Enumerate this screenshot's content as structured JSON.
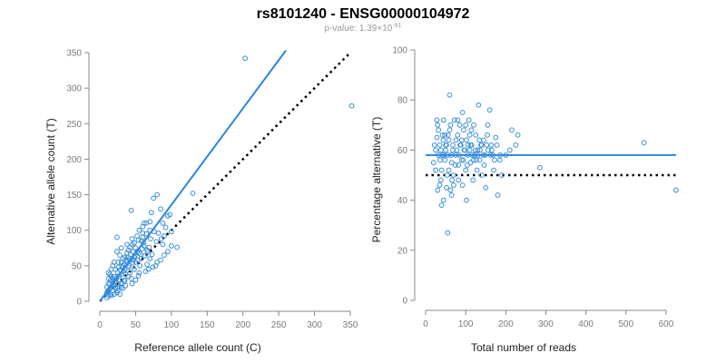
{
  "colors": {
    "points": "#3a8fd6",
    "fit": "#2a86e0",
    "reference": "#000000",
    "axes": "#888888"
  },
  "figure": {
    "title": "rs8101240 - ENSG00000104972",
    "subtitle": {
      "prefix": "p-value: 1.39",
      "times": "×",
      "base": "10",
      "exponent": "-91"
    }
  },
  "chart_data": [
    {
      "type": "scatter",
      "title": "",
      "xlabel": "Reference allele count (C)",
      "ylabel": "Alternative allele count (T)",
      "xlim": [
        0,
        350
      ],
      "ylim": [
        0,
        350
      ],
      "xticks": [
        0,
        50,
        100,
        150,
        200,
        250,
        300,
        350
      ],
      "yticks": [
        0,
        50,
        100,
        150,
        200,
        250,
        300,
        350
      ],
      "grid": false,
      "fit_line": {
        "x": [
          0,
          260
        ],
        "y": [
          0,
          353
        ],
        "style": "solid"
      },
      "reference_line": {
        "x": [
          0,
          350
        ],
        "y": [
          0,
          350
        ],
        "style": "dotted"
      },
      "points": [
        [
          10,
          5
        ],
        [
          12,
          8
        ],
        [
          15,
          10
        ],
        [
          10,
          20
        ],
        [
          14,
          18
        ],
        [
          18,
          15
        ],
        [
          20,
          22
        ],
        [
          12,
          25
        ],
        [
          22,
          28
        ],
        [
          25,
          20
        ],
        [
          28,
          30
        ],
        [
          30,
          25
        ],
        [
          15,
          30
        ],
        [
          20,
          35
        ],
        [
          25,
          40
        ],
        [
          30,
          38
        ],
        [
          35,
          45
        ],
        [
          32,
          50
        ],
        [
          38,
          55
        ],
        [
          40,
          48
        ],
        [
          42,
          60
        ],
        [
          45,
          58
        ],
        [
          48,
          62
        ],
        [
          50,
          55
        ],
        [
          52,
          70
        ],
        [
          35,
          62
        ],
        [
          30,
          55
        ],
        [
          28,
          65
        ],
        [
          40,
          72
        ],
        [
          45,
          80
        ],
        [
          50,
          75
        ],
        [
          55,
          68
        ],
        [
          58,
          85
        ],
        [
          60,
          90
        ],
        [
          62,
          78
        ],
        [
          65,
          95
        ],
        [
          55,
          100
        ],
        [
          60,
          105
        ],
        [
          65,
          110
        ],
        [
          70,
          112
        ],
        [
          75,
          145
        ],
        [
          80,
          150
        ],
        [
          85,
          130
        ],
        [
          72,
          125
        ],
        [
          95,
          120
        ],
        [
          98,
          122
        ],
        [
          100,
          78
        ],
        [
          90,
          92
        ],
        [
          80,
          55
        ],
        [
          78,
          50
        ],
        [
          70,
          60
        ],
        [
          68,
          45
        ],
        [
          55,
          40
        ],
        [
          50,
          30
        ],
        [
          45,
          25
        ],
        [
          40,
          35
        ],
        [
          35,
          30
        ],
        [
          30,
          20
        ],
        [
          25,
          15
        ],
        [
          20,
          10
        ],
        [
          18,
          28
        ],
        [
          16,
          35
        ],
        [
          22,
          45
        ],
        [
          26,
          55
        ],
        [
          24,
          70
        ],
        [
          24,
          90
        ],
        [
          44,
          128
        ],
        [
          62,
          110
        ],
        [
          85,
          58
        ],
        [
          90,
          65
        ],
        [
          95,
          70
        ],
        [
          88,
          80
        ],
        [
          66,
          72
        ],
        [
          58,
          60
        ],
        [
          48,
          45
        ],
        [
          42,
          40
        ],
        [
          36,
          38
        ],
        [
          33,
          42
        ],
        [
          12,
          32
        ],
        [
          14,
          38
        ],
        [
          18,
          50
        ],
        [
          20,
          55
        ],
        [
          30,
          75
        ],
        [
          38,
          80
        ],
        [
          45,
          88
        ],
        [
          52,
          92
        ],
        [
          130,
          152
        ],
        [
          100,
          98
        ],
        [
          108,
          76
        ],
        [
          203,
          342
        ],
        [
          352,
          275
        ],
        [
          10,
          12
        ],
        [
          11,
          14
        ],
        [
          13,
          16
        ],
        [
          17,
          20
        ],
        [
          19,
          24
        ],
        [
          21,
          26
        ],
        [
          23,
          32
        ],
        [
          27,
          36
        ],
        [
          29,
          44
        ],
        [
          31,
          48
        ],
        [
          34,
          52
        ],
        [
          37,
          58
        ],
        [
          39,
          62
        ],
        [
          41,
          50
        ],
        [
          43,
          66
        ],
        [
          47,
          70
        ],
        [
          49,
          64
        ],
        [
          53,
          58
        ],
        [
          57,
          66
        ],
        [
          59,
          74
        ],
        [
          61,
          82
        ],
        [
          63,
          64
        ],
        [
          67,
          70
        ],
        [
          69,
          76
        ],
        [
          71,
          88
        ],
        [
          73,
          66
        ],
        [
          76,
          98
        ],
        [
          79,
          84
        ],
        [
          82,
          96
        ],
        [
          86,
          88
        ],
        [
          92,
          104
        ],
        [
          16,
          8
        ],
        [
          24,
          12
        ],
        [
          32,
          18
        ],
        [
          36,
          22
        ],
        [
          28,
          10
        ],
        [
          12,
          40
        ],
        [
          16,
          45
        ],
        [
          22,
          18
        ],
        [
          26,
          24
        ],
        [
          34,
          28
        ],
        [
          44,
          32
        ],
        [
          54,
          36
        ],
        [
          64,
          42
        ],
        [
          74,
          48
        ],
        [
          46,
          54
        ],
        [
          56,
          50
        ],
        [
          66,
          52
        ],
        [
          14,
          24
        ],
        [
          18,
          32
        ],
        [
          26,
          48
        ],
        [
          32,
          60
        ],
        [
          38,
          68
        ],
        [
          42,
          76
        ],
        [
          48,
          82
        ],
        [
          54,
          86
        ],
        [
          60,
          96
        ],
        [
          70,
          100
        ],
        [
          88,
          110
        ]
      ]
    },
    {
      "type": "scatter",
      "title": "",
      "xlabel": "Total number of reads",
      "ylabel": "Percentage alternative (T)",
      "xlim": [
        0,
        625
      ],
      "ylim": [
        0,
        100
      ],
      "xticks": [
        0,
        100,
        200,
        300,
        400,
        500,
        600
      ],
      "yticks": [
        0,
        20,
        40,
        60,
        80,
        100
      ],
      "grid": false,
      "fit_line": {
        "y": 58,
        "style": "solid"
      },
      "reference_line": {
        "y": 50,
        "style": "dotted"
      },
      "points": [
        [
          20,
          55
        ],
        [
          25,
          60
        ],
        [
          28,
          65
        ],
        [
          30,
          70
        ],
        [
          32,
          58
        ],
        [
          35,
          62
        ],
        [
          38,
          48
        ],
        [
          40,
          52
        ],
        [
          42,
          66
        ],
        [
          45,
          72
        ],
        [
          48,
          56
        ],
        [
          50,
          60
        ],
        [
          52,
          45
        ],
        [
          55,
          58
        ],
        [
          58,
          64
        ],
        [
          60,
          82
        ],
        [
          62,
          70
        ],
        [
          65,
          55
        ],
        [
          68,
          62
        ],
        [
          70,
          50
        ],
        [
          72,
          72
        ],
        [
          75,
          58
        ],
        [
          78,
          60
        ],
        [
          80,
          66
        ],
        [
          82,
          54
        ],
        [
          85,
          70
        ],
        [
          88,
          62
        ],
        [
          90,
          56
        ],
        [
          92,
          75
        ],
        [
          95,
          68
        ],
        [
          98,
          60
        ],
        [
          100,
          52
        ],
        [
          102,
          64
        ],
        [
          105,
          58
        ],
        [
          108,
          72
        ],
        [
          110,
          60
        ],
        [
          112,
          55
        ],
        [
          115,
          62
        ],
        [
          118,
          48
        ],
        [
          120,
          70
        ],
        [
          122,
          58
        ],
        [
          125,
          66
        ],
        [
          128,
          52
        ],
        [
          130,
          60
        ],
        [
          132,
          78
        ],
        [
          135,
          56
        ],
        [
          138,
          62
        ],
        [
          140,
          50
        ],
        [
          145,
          64
        ],
        [
          148,
          58
        ],
        [
          150,
          45
        ],
        [
          152,
          62
        ],
        [
          155,
          70
        ],
        [
          160,
          76
        ],
        [
          162,
          58
        ],
        [
          165,
          60
        ],
        [
          170,
          52
        ],
        [
          175,
          65
        ],
        [
          180,
          42
        ],
        [
          185,
          56
        ],
        [
          190,
          50
        ],
        [
          200,
          58
        ],
        [
          210,
          60
        ],
        [
          215,
          68
        ],
        [
          225,
          62
        ],
        [
          230,
          66
        ],
        [
          285,
          53
        ],
        [
          545,
          63
        ],
        [
          625,
          44
        ],
        [
          55,
          27
        ],
        [
          40,
          38
        ],
        [
          45,
          40
        ],
        [
          65,
          42
        ],
        [
          70,
          46
        ],
        [
          30,
          44
        ],
        [
          35,
          46
        ],
        [
          25,
          52
        ],
        [
          22,
          62
        ],
        [
          28,
          72
        ],
        [
          32,
          68
        ],
        [
          36,
          56
        ],
        [
          44,
          64
        ],
        [
          46,
          58
        ],
        [
          54,
          50
        ],
        [
          56,
          66
        ],
        [
          64,
          58
        ],
        [
          66,
          48
        ],
        [
          74,
          54
        ],
        [
          76,
          64
        ],
        [
          84,
          58
        ],
        [
          86,
          62
        ],
        [
          94,
          56
        ],
        [
          96,
          60
        ],
        [
          104,
          54
        ],
        [
          106,
          62
        ],
        [
          114,
          68
        ],
        [
          116,
          58
        ],
        [
          124,
          60
        ],
        [
          126,
          56
        ],
        [
          134,
          64
        ],
        [
          136,
          60
        ],
        [
          144,
          58
        ],
        [
          146,
          54
        ],
        [
          154,
          66
        ],
        [
          156,
          60
        ],
        [
          164,
          62
        ],
        [
          168,
          58
        ],
        [
          172,
          56
        ],
        [
          178,
          62
        ],
        [
          186,
          58
        ],
        [
          58,
          52
        ],
        [
          62,
          44
        ],
        [
          82,
          48
        ],
        [
          92,
          46
        ],
        [
          102,
          40
        ],
        [
          112,
          62
        ],
        [
          50,
          62
        ],
        [
          60,
          68
        ],
        [
          80,
          72
        ],
        [
          90,
          64
        ],
        [
          100,
          70
        ],
        [
          110,
          66
        ],
        [
          120,
          56
        ],
        [
          130,
          58
        ],
        [
          140,
          62
        ],
        [
          48,
          66
        ],
        [
          38,
          60
        ],
        [
          42,
          58
        ],
        [
          52,
          62
        ],
        [
          68,
          60
        ]
      ]
    }
  ]
}
